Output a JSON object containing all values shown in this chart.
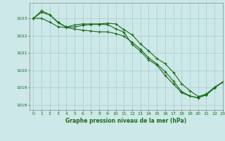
{
  "title": "Graphe pression niveau de la mer (hPa)",
  "bg_color": "#cce8e8",
  "grid_color": "#aacccc",
  "line_color": "#1a6b1a",
  "axis_color": "#888888",
  "text_color": "#1a6b1a",
  "xlim": [
    -0.5,
    23
  ],
  "ylim": [
    1017.7,
    1023.9
  ],
  "yticks": [
    1018,
    1019,
    1020,
    1021,
    1022,
    1023
  ],
  "xticks": [
    0,
    1,
    2,
    3,
    4,
    5,
    6,
    7,
    8,
    9,
    10,
    11,
    12,
    13,
    14,
    15,
    16,
    17,
    18,
    19,
    20,
    21,
    22,
    23
  ],
  "line1": [
    1023.0,
    1023.35,
    1023.2,
    1022.75,
    1022.5,
    1022.5,
    1022.6,
    1022.65,
    1022.65,
    1022.65,
    1022.4,
    1022.2,
    1021.5,
    1021.1,
    1020.6,
    1020.3,
    1019.7,
    1019.2,
    1018.7,
    1018.5,
    1018.4,
    1018.6,
    1019.0,
    1019.3
  ],
  "line2": [
    1023.0,
    1023.45,
    1023.2,
    1022.78,
    1022.5,
    1022.62,
    1022.68,
    1022.68,
    1022.68,
    1022.72,
    1022.68,
    1022.35,
    1022.05,
    1021.52,
    1021.12,
    1020.68,
    1020.38,
    1019.88,
    1019.22,
    1018.82,
    1018.48,
    1018.62,
    1019.02,
    1019.32
  ],
  "line3": [
    1023.0,
    1023.0,
    1022.78,
    1022.52,
    1022.47,
    1022.38,
    1022.32,
    1022.27,
    1022.22,
    1022.22,
    1022.12,
    1021.97,
    1021.62,
    1021.22,
    1020.72,
    1020.37,
    1019.92,
    1019.37,
    1018.77,
    1018.52,
    1018.4,
    1018.57,
    1018.97,
    1019.32
  ]
}
